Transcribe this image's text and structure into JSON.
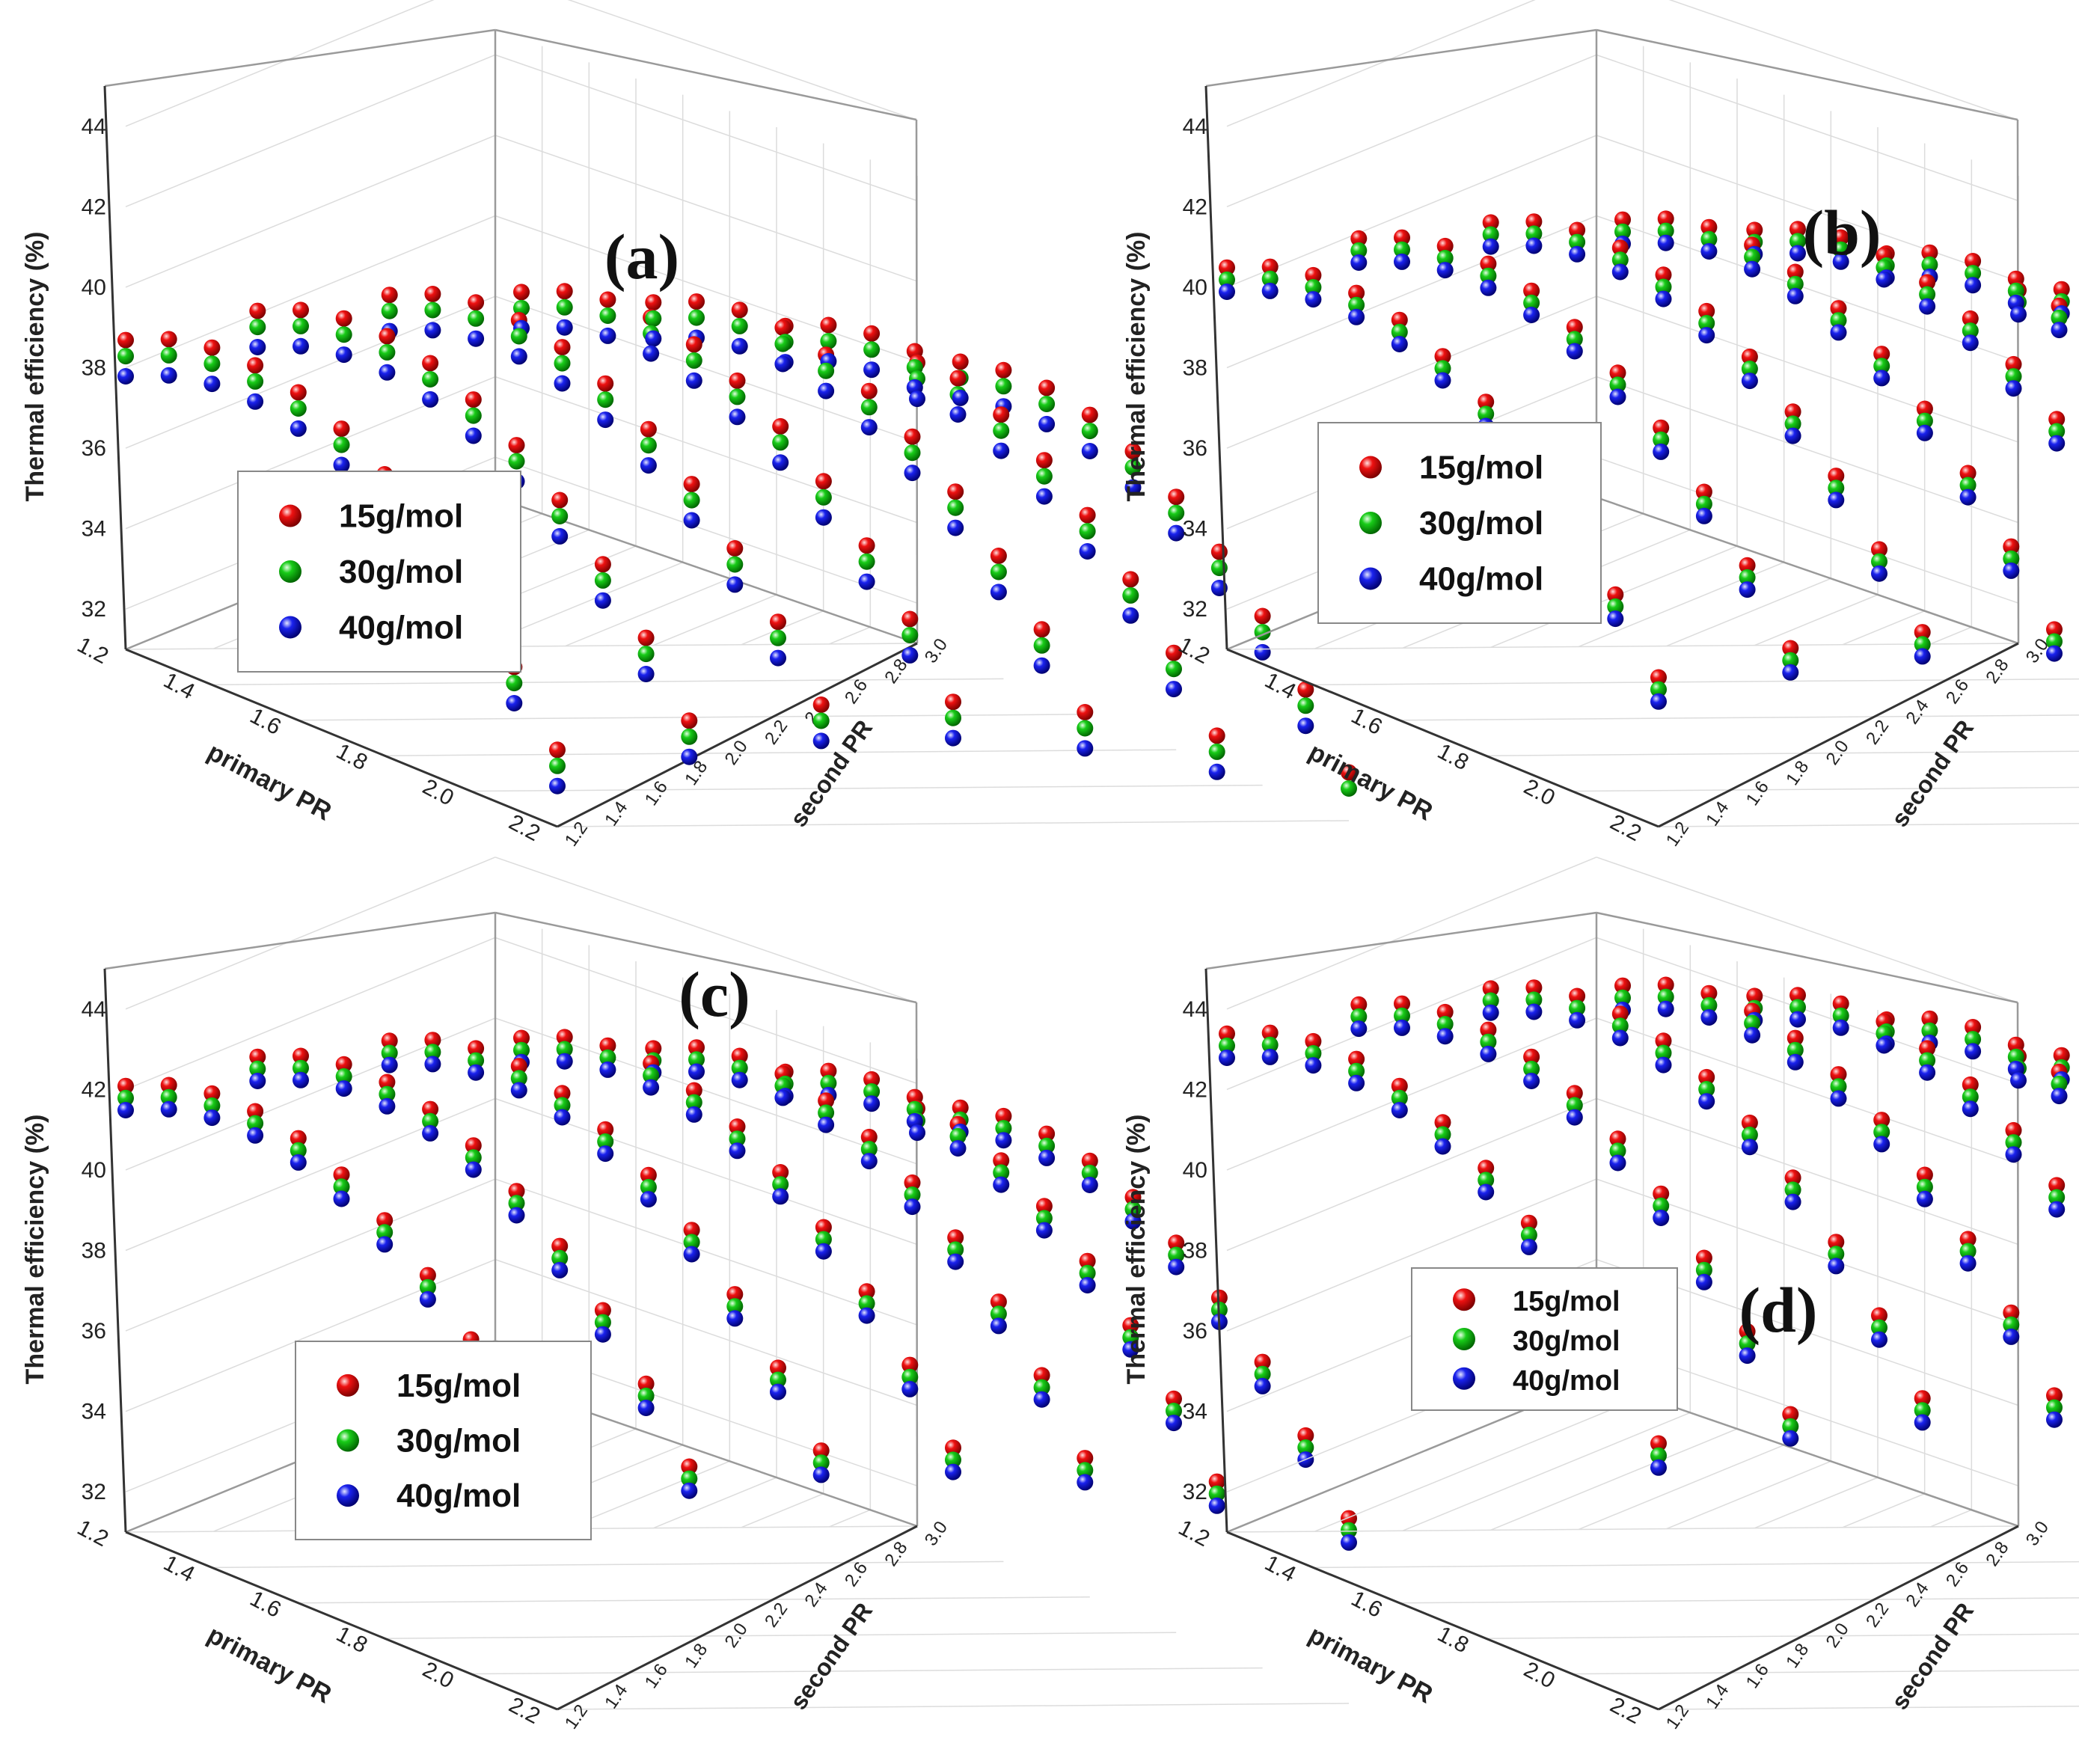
{
  "chart_data": [
    {
      "type": "scatter",
      "subtype": "3d-scatter",
      "panel": "(a)",
      "xlabel": "primary PR",
      "ylabel": "second PR",
      "zlabel": "Thermal efficiency (%)",
      "x_ticks": [
        "1.2",
        "1.4",
        "1.6",
        "1.8",
        "2.0",
        "2.2"
      ],
      "y_ticks": [
        "1.2",
        "1.4",
        "1.6",
        "1.8",
        "2.0",
        "2.2",
        "2.4",
        "2.6",
        "2.8",
        "3.0"
      ],
      "z_ticks": [
        "32",
        "34",
        "36",
        "38",
        "40",
        "42",
        "44"
      ],
      "xlim": [
        1.2,
        2.2
      ],
      "ylim": [
        1.2,
        3.0
      ],
      "zlim": [
        31,
        45
      ],
      "series": [
        {
          "name": "15g/mol",
          "color": "#ee1111",
          "z_base": 40.3
        },
        {
          "name": "30g/mol",
          "color": "#18cc18",
          "z_base": 39.9
        },
        {
          "name": "40g/mol",
          "color": "#1a22ee",
          "z_base": 39.4
        }
      ],
      "legend": {
        "position": "lower-left",
        "entries": [
          "15g/mol",
          "30g/mol",
          "40g/mol"
        ]
      }
    },
    {
      "type": "scatter",
      "subtype": "3d-scatter",
      "panel": "(b)",
      "xlabel": "primary PR",
      "ylabel": "second PR",
      "zlabel": "Thermal efficiency (%)",
      "x_ticks": [
        "1.2",
        "1.4",
        "1.6",
        "1.8",
        "2.0",
        "2.2"
      ],
      "y_ticks": [
        "1.2",
        "1.4",
        "1.6",
        "1.8",
        "2.0",
        "2.2",
        "2.4",
        "2.6",
        "2.8",
        "3.0"
      ],
      "z_ticks": [
        "32",
        "34",
        "36",
        "38",
        "40",
        "42",
        "44"
      ],
      "xlim": [
        1.2,
        2.2
      ],
      "ylim": [
        1.2,
        3.0
      ],
      "zlim": [
        31,
        45
      ],
      "series": [
        {
          "name": "15g/mol",
          "color": "#ee1111",
          "z_base": 42.1
        },
        {
          "name": "30g/mol",
          "color": "#18cc18",
          "z_base": 41.8
        },
        {
          "name": "40g/mol",
          "color": "#1a22ee",
          "z_base": 41.5
        }
      ],
      "legend": {
        "position": "upper-left",
        "entries": [
          "15g/mol",
          "30g/mol",
          "40g/mol"
        ]
      }
    },
    {
      "type": "scatter",
      "subtype": "3d-scatter",
      "panel": "(c)",
      "xlabel": "primary PR",
      "ylabel": "second PR",
      "zlabel": "Thermal efficiency (%)",
      "x_ticks": [
        "1.2",
        "1.4",
        "1.6",
        "1.8",
        "2.0",
        "2.2"
      ],
      "y_ticks": [
        "1.2",
        "1.4",
        "1.6",
        "1.8",
        "2.0",
        "2.2",
        "2.4",
        "2.6",
        "2.8",
        "3.0"
      ],
      "z_ticks": [
        "32",
        "34",
        "36",
        "38",
        "40",
        "42",
        "44"
      ],
      "xlim": [
        1.2,
        2.2
      ],
      "ylim": [
        1.2,
        3.0
      ],
      "zlim": [
        31,
        45
      ],
      "series": [
        {
          "name": "15g/mol",
          "color": "#ee1111",
          "z_base": 43.7
        },
        {
          "name": "30g/mol",
          "color": "#18cc18",
          "z_base": 43.4
        },
        {
          "name": "40g/mol",
          "color": "#1a22ee",
          "z_base": 43.1
        }
      ],
      "legend": {
        "position": "lower-left",
        "entries": [
          "15g/mol",
          "30g/mol",
          "40g/mol"
        ]
      }
    },
    {
      "type": "scatter",
      "subtype": "3d-scatter",
      "panel": "(d)",
      "xlabel": "primary PR",
      "ylabel": "second PR",
      "zlabel": "Thermal efficiency (%)",
      "x_ticks": [
        "1.2",
        "1.4",
        "1.6",
        "1.8",
        "2.0",
        "2.2"
      ],
      "y_ticks": [
        "1.2",
        "1.4",
        "1.6",
        "1.8",
        "2.0",
        "2.2",
        "2.4",
        "2.6",
        "2.8",
        "3.0"
      ],
      "z_ticks": [
        "32",
        "34",
        "36",
        "38",
        "40",
        "42",
        "44"
      ],
      "xlim": [
        1.2,
        2.2
      ],
      "ylim": [
        1.2,
        3.0
      ],
      "zlim": [
        31,
        45
      ],
      "series": [
        {
          "name": "15g/mol",
          "color": "#ee1111",
          "z_base": 45.0
        },
        {
          "name": "30g/mol",
          "color": "#18cc18",
          "z_base": 44.7
        },
        {
          "name": "40g/mol",
          "color": "#1a22ee",
          "z_base": 44.4
        }
      ],
      "legend": {
        "position": "mid-left",
        "entries": [
          "15g/mol",
          "30g/mol",
          "40g/mol"
        ]
      }
    }
  ]
}
